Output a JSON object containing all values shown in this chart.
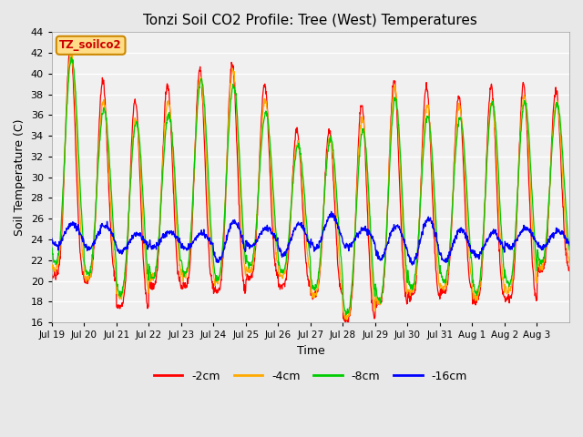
{
  "title": "Tonzi Soil CO2 Profile: Tree (West) Temperatures",
  "xlabel": "Time",
  "ylabel": "Soil Temperature (C)",
  "ylim": [
    16,
    44
  ],
  "yticks": [
    16,
    18,
    20,
    22,
    24,
    26,
    28,
    30,
    32,
    34,
    36,
    38,
    40,
    42,
    44
  ],
  "legend_labels": [
    "-2cm",
    "-4cm",
    "-8cm",
    "-16cm"
  ],
  "legend_colors": [
    "#ff0000",
    "#ffaa00",
    "#00cc00",
    "#0000ff"
  ],
  "watermark_text": "TZ_soilco2",
  "watermark_bg": "#ffdd88",
  "watermark_border": "#cc8800",
  "watermark_text_color": "#cc0000",
  "bg_color": "#e8e8e8",
  "plot_bg": "#f0f0f0",
  "n_days": 16,
  "x_tick_labels": [
    "Jul 19",
    "Jul 20",
    "Jul 21",
    "Jul 22",
    "Jul 23",
    "Jul 24",
    "Jul 25",
    "Jul 26",
    "Jul 27",
    "Jul 28",
    "Jul 29",
    "Jul 30",
    "Jul 31",
    "Aug 1",
    "Aug 2",
    "Aug 3"
  ],
  "points_per_day": 96
}
